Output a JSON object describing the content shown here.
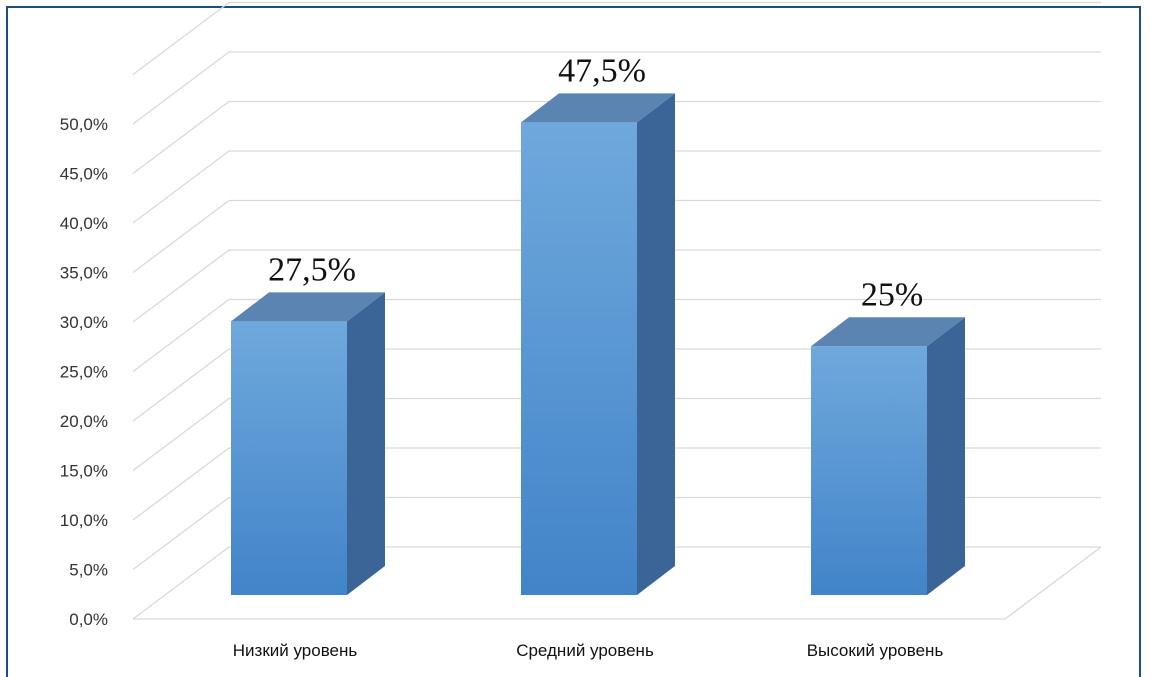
{
  "colors": {
    "bar_front_top": "#6fa8dc",
    "bar_front_bottom": "#4284c9",
    "bar_side": "#3a6596",
    "bar_top": "#5b84b3",
    "grid": "#d9d9d9",
    "frame": "#1f4e79"
  },
  "chart_data": {
    "type": "bar",
    "categories": [
      "Низкий уровень",
      "Средний уровень",
      "Высокий уровень"
    ],
    "values": [
      27.5,
      47.5,
      25
    ],
    "data_labels": [
      "27,5%",
      "47,5%",
      "25%"
    ],
    "y_ticks": [
      "0,0%",
      "5,0%",
      "10,0%",
      "15,0%",
      "20,0%",
      "25,0%",
      "30,0%",
      "35,0%",
      "40,0%",
      "45,0%",
      "50,0%"
    ],
    "ylim": [
      0,
      50
    ],
    "grid": true,
    "three_d": true,
    "legend": "none"
  }
}
